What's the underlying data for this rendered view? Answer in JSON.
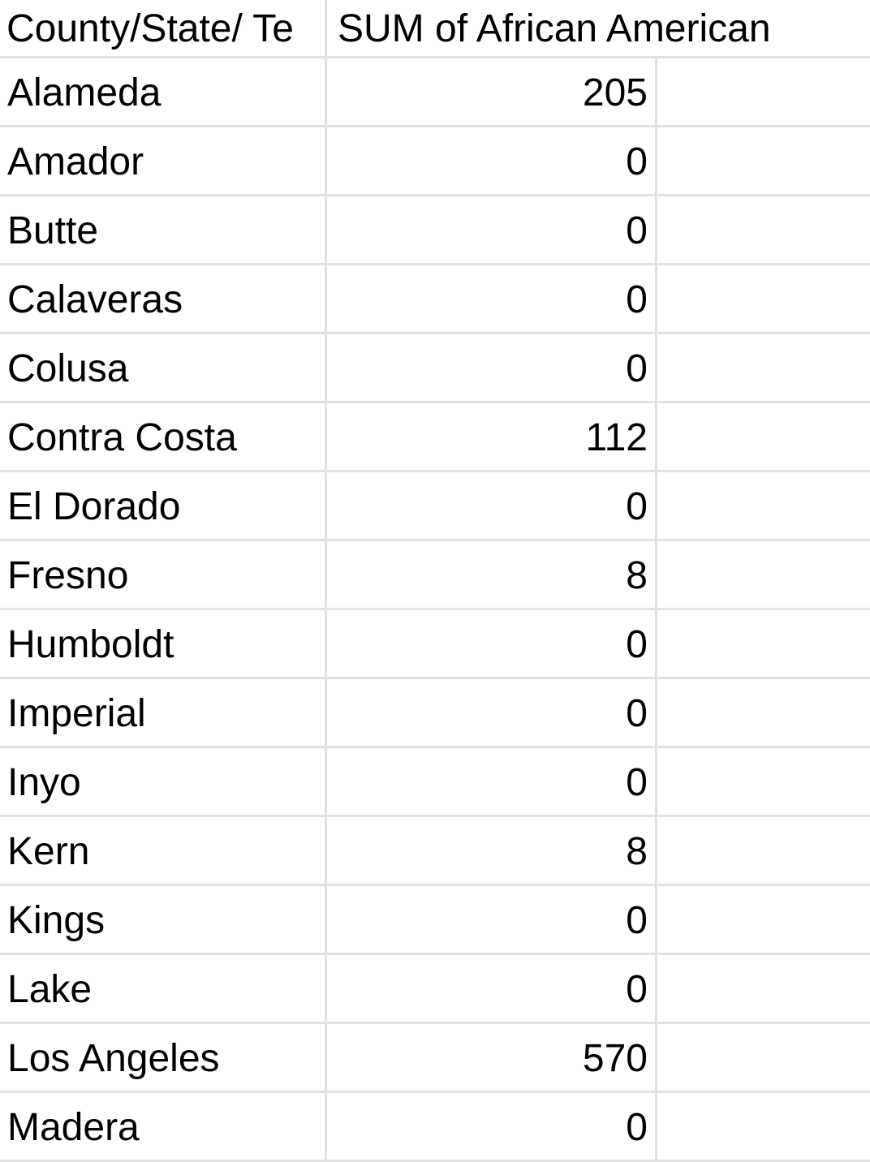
{
  "table": {
    "headers": [
      "County/State/ Te",
      "SUM of African American"
    ],
    "rows": [
      {
        "county": "Alameda",
        "value": "205"
      },
      {
        "county": "Amador",
        "value": "0"
      },
      {
        "county": "Butte",
        "value": "0"
      },
      {
        "county": "Calaveras",
        "value": "0"
      },
      {
        "county": "Colusa",
        "value": "0"
      },
      {
        "county": "Contra Costa",
        "value": "112"
      },
      {
        "county": "El Dorado",
        "value": "0"
      },
      {
        "county": "Fresno",
        "value": "8"
      },
      {
        "county": "Humboldt",
        "value": "0"
      },
      {
        "county": "Imperial",
        "value": "0"
      },
      {
        "county": "Inyo",
        "value": "0"
      },
      {
        "county": "Kern",
        "value": "8"
      },
      {
        "county": "Kings",
        "value": "0"
      },
      {
        "county": "Lake",
        "value": "0"
      },
      {
        "county": "Los Angeles",
        "value": "570"
      },
      {
        "county": "Madera",
        "value": "0"
      }
    ]
  },
  "colors": {
    "gridline": "#e2e2e2",
    "text": "#000000",
    "background": "#ffffff"
  }
}
